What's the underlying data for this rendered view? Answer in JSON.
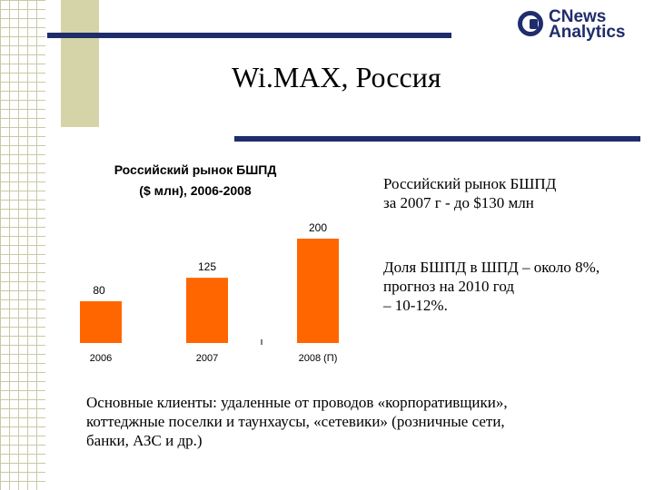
{
  "slide": {
    "title": "Wi.MAX, Россия",
    "logo": {
      "line1": "CNews",
      "line2": "Analytics"
    },
    "text1": [
      "Российский рынок БШПД",
      "за 2007 г - до $130 млн"
    ],
    "text2": [
      "Доля БШПД в ШПД – около 8%,",
      "прогноз на 2010 год",
      "– 10-12%."
    ],
    "bottom_text": [
      "Основные клиенты: удаленные от проводов «корпоративщики»,",
      "коттеджные поселки и таунхаусы, «сетевики» (розничные сети,",
      "банки, АЗС и др.)"
    ]
  },
  "chart_data": {
    "type": "bar",
    "title": [
      "Российский рынок БШПД",
      "($ млн), 2006-2008"
    ],
    "categories": [
      "2006",
      "2007",
      "2008 (П)"
    ],
    "values": [
      80,
      125,
      200
    ],
    "data_labels": [
      "80",
      "125",
      "200"
    ],
    "ylim": [
      0,
      200
    ],
    "bar_color": "#ff6600",
    "grid": false
  }
}
